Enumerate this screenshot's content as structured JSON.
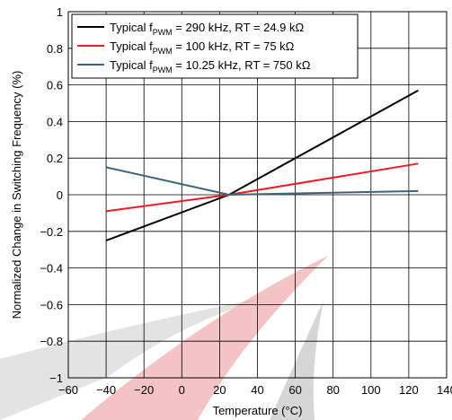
{
  "chart_data": {
    "type": "line",
    "title": "",
    "xlabel": "Temperature (°C)",
    "ylabel": "Normalized Change in Switching Frequency (%)",
    "xlim": [
      -60,
      140
    ],
    "ylim": [
      -1,
      1
    ],
    "x_ticks": [
      "-60",
      "-40",
      "-20",
      "0",
      "20",
      "40",
      "60",
      "80",
      "100",
      "120",
      "140"
    ],
    "y_ticks": [
      "1",
      "0.8",
      "0.6",
      "0.4",
      "0.2",
      "0",
      "-0.2",
      "-0.4",
      "-0.6",
      "-0.8",
      "-1"
    ],
    "grid": true,
    "legend_position": "top-left",
    "series": [
      {
        "legend_prefix": "Typical f",
        "legend_sub": "PWM",
        "legend_suffix": " = 290 kHz, RT = 24.9 kΩ",
        "color": "#000000",
        "x": [
          -40,
          25,
          125
        ],
        "y": [
          -0.25,
          0.0,
          0.57
        ]
      },
      {
        "legend_prefix": "Typical f",
        "legend_sub": "PWM",
        "legend_suffix": " = 100 kHz, RT = 75 kΩ",
        "color": "#ee1c25",
        "x": [
          -40,
          25,
          125
        ],
        "y": [
          -0.09,
          0.0,
          0.17
        ]
      },
      {
        "legend_prefix": "Typical f",
        "legend_sub": "PWM",
        "legend_suffix": " = 10.25 kHz, RT = 750 kΩ",
        "color": "#3b6478",
        "x": [
          -40,
          25,
          125
        ],
        "y": [
          0.15,
          0.0,
          0.02
        ]
      }
    ]
  }
}
